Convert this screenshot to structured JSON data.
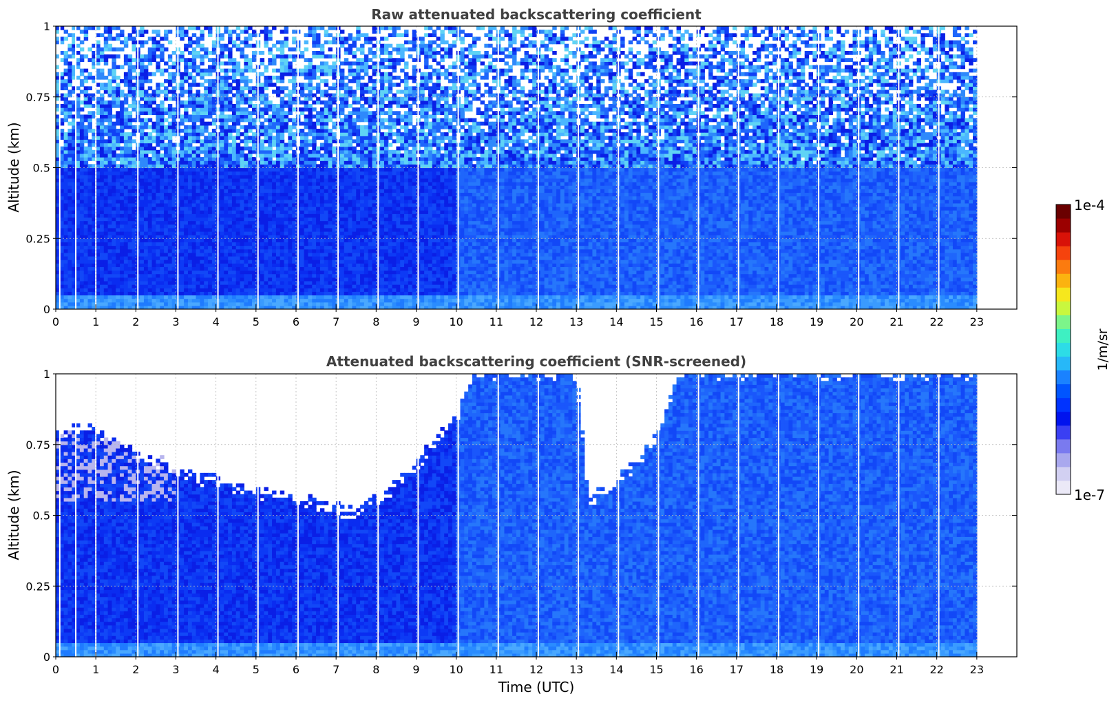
{
  "chart_data": [
    {
      "type": "heatmap",
      "title": "Raw attenuated backscattering coefficient",
      "xlabel": "",
      "ylabel": "Altitude (km)",
      "xlim": [
        0,
        24
      ],
      "ylim": [
        0,
        1
      ],
      "x_ticks": [
        "0",
        "1",
        "2",
        "3",
        "4",
        "5",
        "6",
        "7",
        "8",
        "9",
        "10",
        "11",
        "12",
        "13",
        "14",
        "15",
        "16",
        "17",
        "18",
        "19",
        "20",
        "21",
        "22",
        "23"
      ],
      "y_ticks": [
        "0",
        "0.25",
        "0.5",
        "0.75",
        "1"
      ],
      "grid": true,
      "data_extent_hours": [
        0,
        23
      ],
      "data_gaps_hours": [
        0.1,
        0.5,
        1.0,
        2.05,
        3.05,
        4.05,
        5.05,
        6.05,
        7.05,
        8.05,
        9.05,
        10.05,
        11.05,
        12.05,
        13.05,
        14.05,
        15.05,
        16.05,
        17.05,
        18.05,
        19.05,
        20.05,
        21.05,
        22.05
      ],
      "description": "Dense blue signal below ~0.5 km with noisy speckled returns above; stronger noise around 13-14 UTC."
    },
    {
      "type": "heatmap",
      "title": "Attenuated backscattering coefficient (SNR-screened)",
      "xlabel": "Time (UTC)",
      "ylabel": "Altitude (km)",
      "xlim": [
        0,
        24
      ],
      "ylim": [
        0,
        1
      ],
      "x_ticks": [
        "0",
        "1",
        "2",
        "3",
        "4",
        "5",
        "6",
        "7",
        "8",
        "9",
        "10",
        "11",
        "12",
        "13",
        "14",
        "15",
        "16",
        "17",
        "18",
        "19",
        "20",
        "21",
        "22",
        "23"
      ],
      "y_ticks": [
        "0",
        "0.25",
        "0.5",
        "0.75",
        "1"
      ],
      "grid": true,
      "data_extent_hours": [
        0,
        23
      ],
      "data_gaps_hours": [
        0.1,
        0.5,
        1.0,
        2.05,
        3.05,
        4.05,
        5.05,
        6.05,
        7.05,
        8.05,
        9.05,
        10.05,
        11.05,
        12.05,
        13.05,
        14.05,
        15.05,
        16.05,
        17.05,
        18.05,
        19.05,
        20.05,
        21.05,
        22.05
      ],
      "screened_top_km": [
        [
          0,
          0.8
        ],
        [
          1,
          0.8
        ],
        [
          2,
          0.72
        ],
        [
          3,
          0.66
        ],
        [
          4,
          0.62
        ],
        [
          5,
          0.58
        ],
        [
          6,
          0.56
        ],
        [
          7,
          0.52
        ],
        [
          7.5,
          0.5
        ],
        [
          8,
          0.55
        ],
        [
          9,
          0.68
        ],
        [
          10,
          0.85
        ],
        [
          10.5,
          1.0
        ],
        [
          13,
          1.0
        ],
        [
          13.3,
          0.55
        ],
        [
          14,
          0.62
        ],
        [
          14.6,
          0.7
        ],
        [
          15,
          0.78
        ],
        [
          15.6,
          1.0
        ],
        [
          23,
          1.0
        ]
      ]
    }
  ],
  "colorbar": {
    "label": "1/m/sr",
    "max_label": "1e-4",
    "min_label": "1e-7",
    "scale": "log",
    "range": [
      1e-07,
      0.0001
    ],
    "colors": [
      "#ebe9f7",
      "#d2d0f2",
      "#a9a8ee",
      "#7a7aef",
      "#3a3ff3",
      "#0013ee",
      "#0033ff",
      "#0055ff",
      "#1a82ff",
      "#27b8f8",
      "#2ddce6",
      "#3ef0c2",
      "#7cf58a",
      "#c9f73e",
      "#f6e71d",
      "#fbb310",
      "#fb7b0f",
      "#f5430d",
      "#d81208",
      "#9b0000",
      "#6a0000"
    ]
  }
}
